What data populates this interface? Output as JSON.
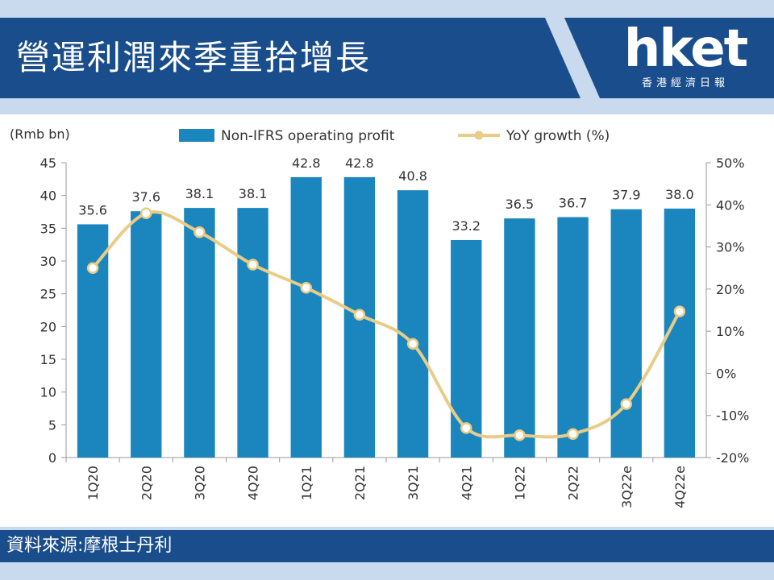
{
  "header": {
    "title": "營運利潤來季重拾增長",
    "logo": {
      "word": "hket",
      "subtitle": "香港經濟日報"
    }
  },
  "footer": {
    "source": "資料來源:摩根士丹利"
  },
  "colors": {
    "header_bg": "#1a4d8c",
    "strip": "#c9d9ee",
    "bar": "#1a86bd",
    "line": "#e8cc87",
    "axis": "#999999",
    "text": "#333333"
  },
  "chart_data": {
    "type": "bar",
    "categories": [
      "1Q20",
      "2Q20",
      "3Q20",
      "4Q20",
      "1Q21",
      "2Q21",
      "3Q21",
      "4Q21",
      "1Q22",
      "2Q22",
      "3Q22e",
      "4Q22e"
    ],
    "series": [
      {
        "name": "Non-IFRS operating profit",
        "type": "bar",
        "axis": "left",
        "values": [
          35.6,
          37.6,
          38.1,
          38.1,
          42.8,
          42.8,
          40.8,
          33.2,
          36.5,
          36.7,
          37.9,
          38.0
        ],
        "labels": [
          "35.6",
          "37.6",
          "38.1",
          "38.1",
          "42.8",
          "42.8",
          "40.8",
          "33.2",
          "36.5",
          "36.7",
          "37.9",
          "38.0"
        ]
      },
      {
        "name": "YoY growth (%)",
        "type": "line",
        "axis": "right",
        "values": [
          25,
          38,
          33.5,
          25.8,
          20.3,
          13.9,
          7,
          -13,
          -14.7,
          -14.4,
          -7.3,
          14.7
        ]
      }
    ],
    "ylabel": "(Rmb bn)",
    "ylim": [
      0,
      45
    ],
    "yticks": [
      "0",
      "5",
      "10",
      "15",
      "20",
      "25",
      "30",
      "35",
      "40",
      "45"
    ],
    "ylim_right": [
      -20,
      50
    ],
    "yticks_right": [
      "-20%",
      "-10%",
      "0%",
      "10%",
      "20%",
      "30%",
      "40%",
      "50%"
    ],
    "legend_position": "top",
    "grid": false
  }
}
